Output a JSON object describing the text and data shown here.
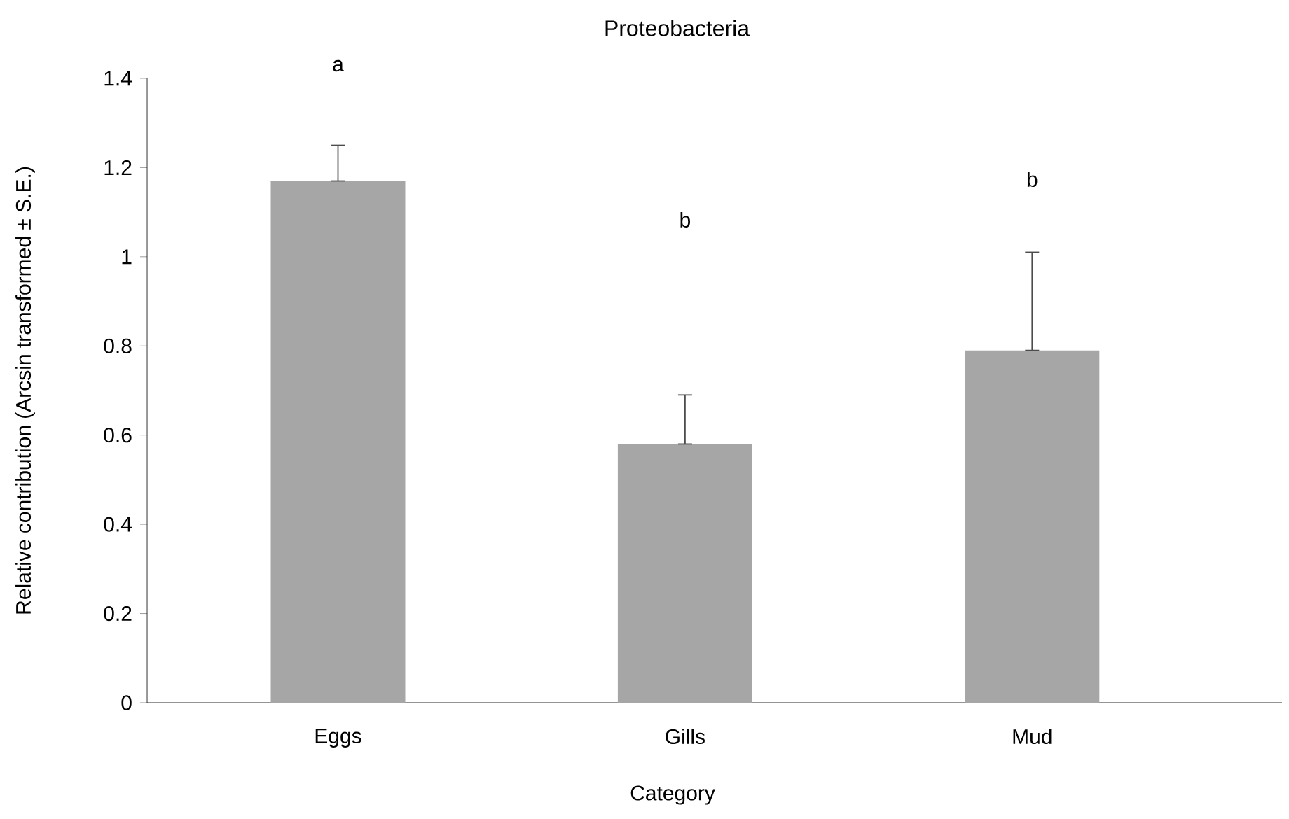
{
  "chart_data": {
    "type": "bar",
    "title": "Proteobacteria",
    "xlabel": "Category",
    "ylabel": "Relative contribution (Arcsin transformed ± S.E.)",
    "categories": [
      "Eggs",
      "Gills",
      "Mud"
    ],
    "values": [
      1.17,
      0.58,
      0.79
    ],
    "errors": [
      [
        1.17,
        1.25
      ],
      [
        0.58,
        0.69
      ],
      [
        0.79,
        1.01
      ]
    ],
    "color": "#a6a6a6",
    "ylim": [
      0,
      1.4
    ],
    "yticks": [
      0,
      0.2,
      0.4,
      0.6,
      0.8,
      1,
      1.2,
      1.4
    ],
    "grid": false,
    "annotations": [
      "a",
      "b",
      "b"
    ]
  }
}
